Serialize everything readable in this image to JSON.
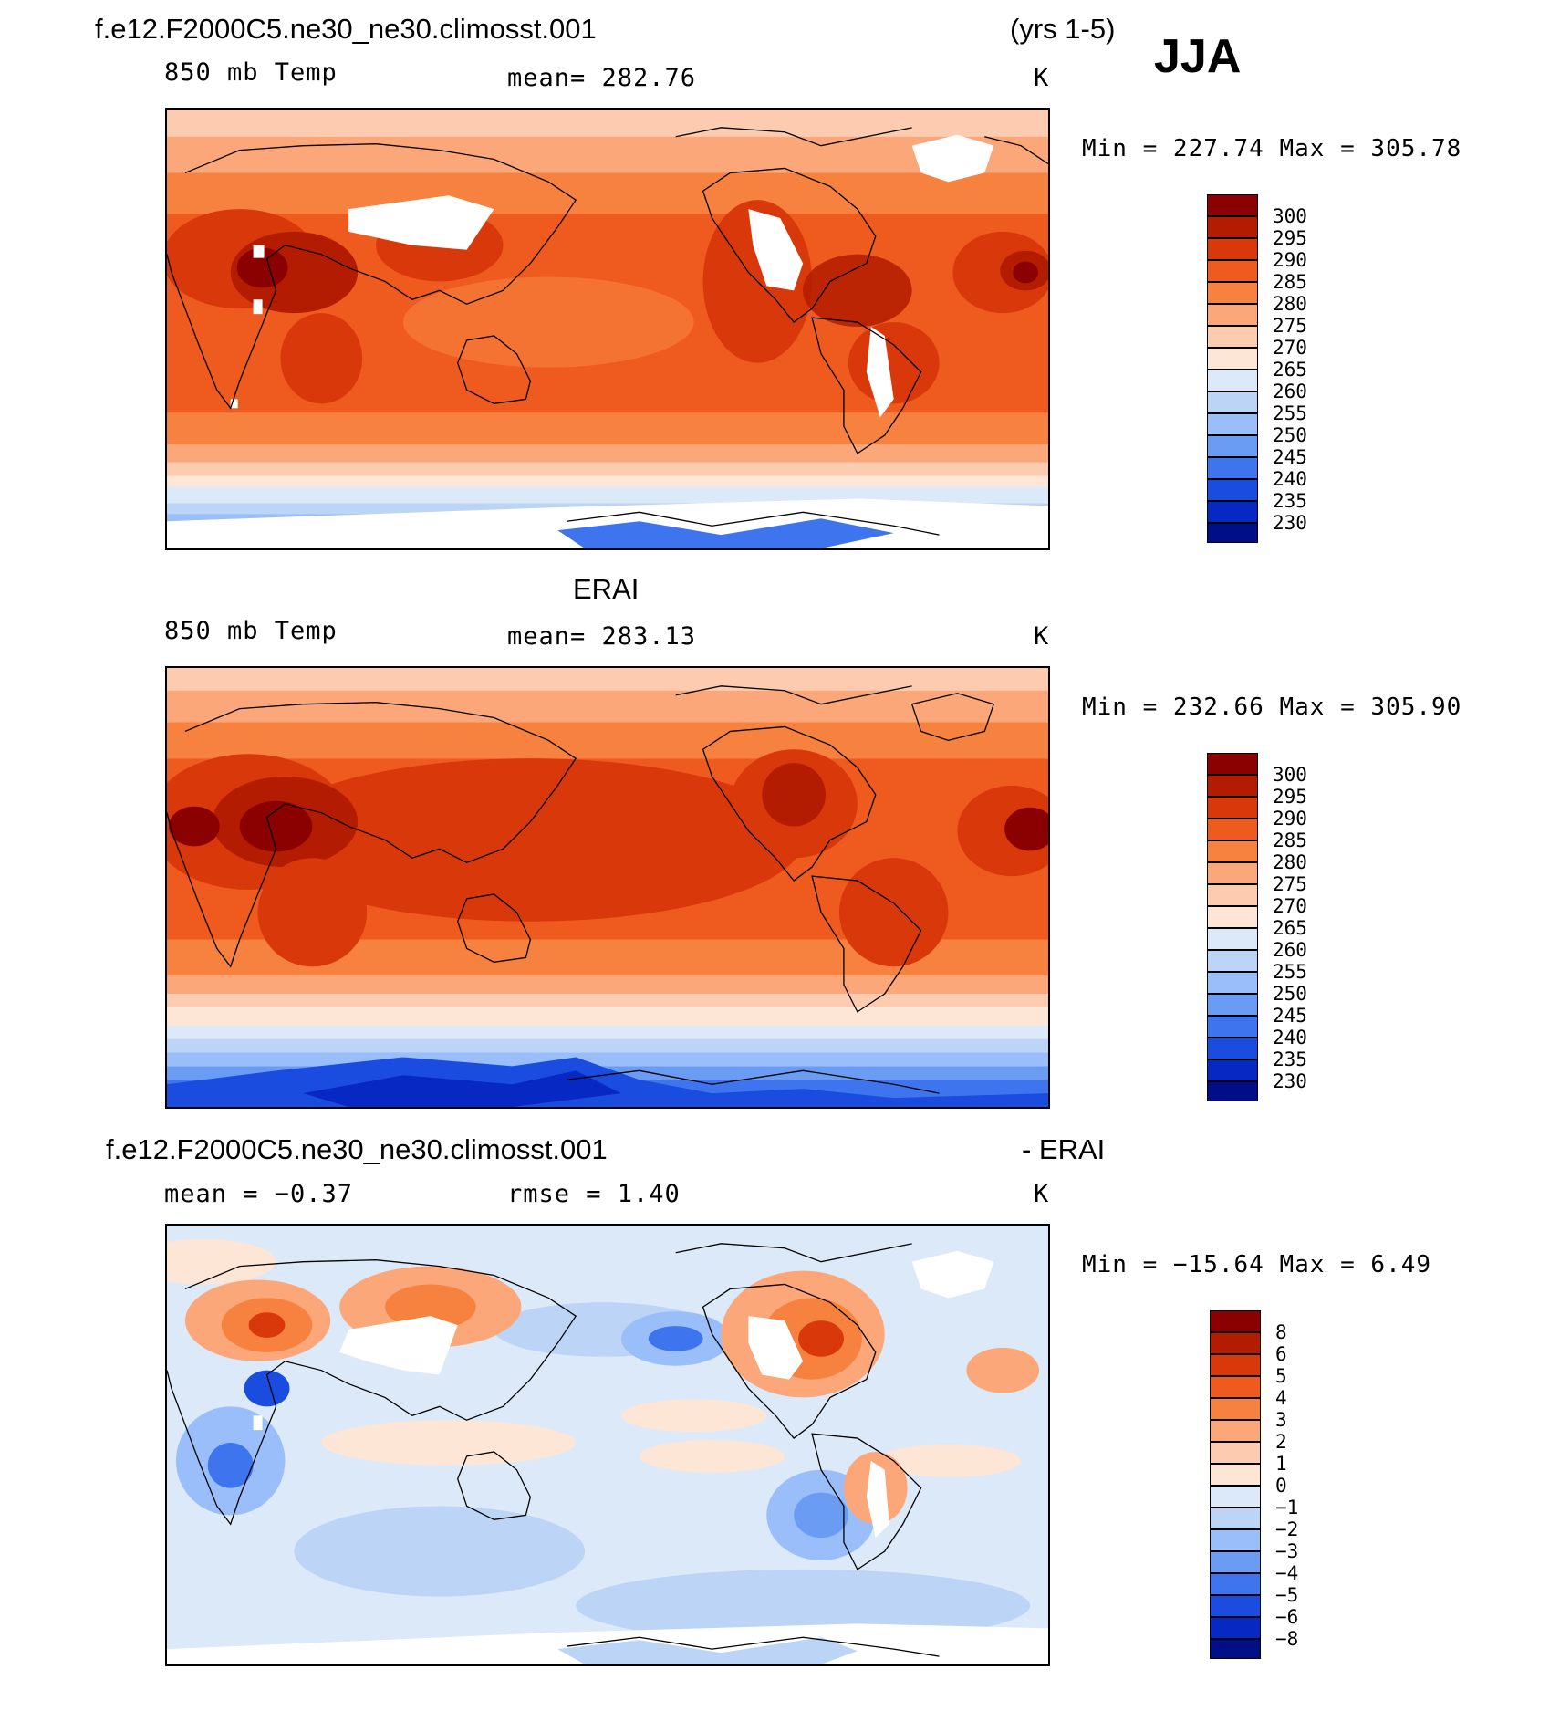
{
  "header": {
    "case_name": "f.e12.F2000C5.ne30_ne30.climosst.001",
    "years": "(yrs 1-5)",
    "season": "JJA"
  },
  "panels": [
    {
      "id": "model",
      "title": "",
      "variable": "850 mb Temp",
      "stat": "mean=  282.76",
      "units": "K",
      "minmax": "Min = 227.74 Max = 305.78",
      "legend": {
        "labels": [
          "300",
          "295",
          "290",
          "285",
          "280",
          "275",
          "270",
          "265",
          "260",
          "255",
          "250",
          "245",
          "240",
          "235",
          "230"
        ],
        "colors": [
          "#8b0000",
          "#b31c00",
          "#d8380a",
          "#ef5a1e",
          "#f7823f",
          "#fba77a",
          "#fdccb0",
          "#fde6d6",
          "#dce9f8",
          "#bcd5f6",
          "#99befa",
          "#6b9cf4",
          "#3e74ee",
          "#1a4ce0",
          "#0828c4",
          "#000f88"
        ]
      }
    },
    {
      "id": "obs",
      "title": "ERAI",
      "variable": "850 mb Temp",
      "stat": "mean=  283.13",
      "units": "K",
      "minmax": "Min = 232.66 Max = 305.90",
      "legend": {
        "labels": [
          "300",
          "295",
          "290",
          "285",
          "280",
          "275",
          "270",
          "265",
          "260",
          "255",
          "250",
          "245",
          "240",
          "235",
          "230"
        ],
        "colors": [
          "#8b0000",
          "#b31c00",
          "#d8380a",
          "#ef5a1e",
          "#f7823f",
          "#fba77a",
          "#fdccb0",
          "#fde6d6",
          "#dce9f8",
          "#bcd5f6",
          "#99befa",
          "#6b9cf4",
          "#3e74ee",
          "#1a4ce0",
          "#0828c4",
          "#000f88"
        ]
      }
    },
    {
      "id": "diff",
      "title_left": "f.e12.F2000C5.ne30_ne30.climosst.001",
      "title_right": "- ERAI",
      "stat_mean": "mean =  −0.37",
      "stat_rmse": "rmse =   1.40",
      "units": "K",
      "minmax": "Min = −15.64 Max =   6.49",
      "legend": {
        "labels": [
          "8",
          "6",
          "5",
          "4",
          "3",
          "2",
          "1",
          "0",
          "−1",
          "−2",
          "−3",
          "−4",
          "−5",
          "−6",
          "−8"
        ],
        "colors": [
          "#8b0000",
          "#b31c00",
          "#d8380a",
          "#ef5a1e",
          "#f7823f",
          "#fba77a",
          "#fdccb0",
          "#fde6d6",
          "#dce9f8",
          "#bcd5f6",
          "#99befa",
          "#6b9cf4",
          "#3e74ee",
          "#1a4ce0",
          "#0828c4",
          "#000f88"
        ]
      }
    }
  ]
}
